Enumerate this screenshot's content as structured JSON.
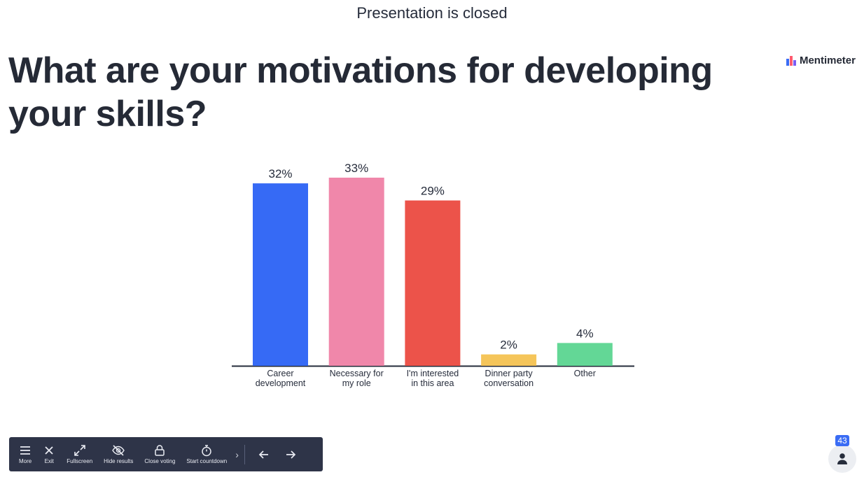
{
  "header": {
    "status": "Presentation is closed"
  },
  "slide": {
    "question": "What are your motivations for developing your skills?"
  },
  "brand": {
    "name": "Mentimeter",
    "colors": [
      "#ff5a6e",
      "#3a6cf4",
      "#7a5cf5"
    ]
  },
  "chart_data": {
    "type": "bar",
    "categories": [
      [
        "Career",
        "development"
      ],
      [
        "Necessary for",
        "my role"
      ],
      [
        "I'm interested",
        "in this area"
      ],
      [
        "Dinner party",
        "conversation"
      ],
      [
        "Other"
      ]
    ],
    "values": [
      32,
      33,
      29,
      2,
      4
    ],
    "value_labels": [
      "32%",
      "33%",
      "29%",
      "2%",
      "4%"
    ],
    "colors": [
      "#366af5",
      "#f087aa",
      "#ec534a",
      "#f5c55a",
      "#63d796"
    ],
    "ylim": [
      0,
      33
    ],
    "grid": false
  },
  "toolbar": {
    "items": [
      {
        "label": "More",
        "icon": "menu-icon"
      },
      {
        "label": "Exit",
        "icon": "close-icon"
      },
      {
        "label": "Fullscreen",
        "icon": "fullscreen-icon"
      },
      {
        "label": "Hide results",
        "icon": "eye-off-icon"
      },
      {
        "label": "Close voting",
        "icon": "lock-icon"
      },
      {
        "label": "Start countdown",
        "icon": "timer-icon"
      }
    ]
  },
  "audience": {
    "count": "43",
    "icon": "person-icon"
  }
}
